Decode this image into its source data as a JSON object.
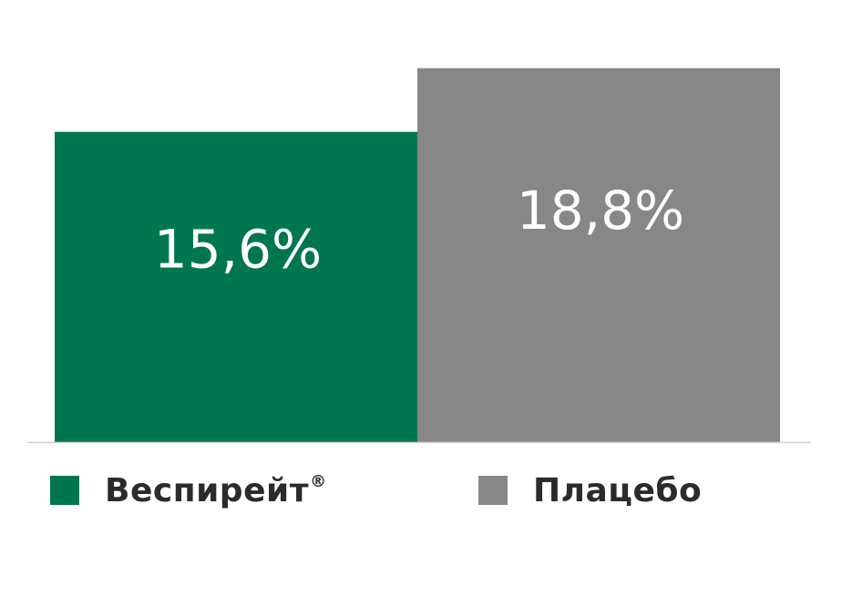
{
  "chart_data": {
    "type": "bar",
    "categories": [
      "Веспирейт®",
      "Плацебо"
    ],
    "values": [
      15.6,
      18.8
    ],
    "value_labels": [
      "15,6%",
      "18,8%"
    ],
    "unit": "%",
    "colors": [
      "#007650",
      "#878787"
    ],
    "ylim": [
      0,
      22
    ],
    "grid": false,
    "legend_position": "bottom"
  },
  "legend": [
    {
      "label": "Веспирейт",
      "sup": "®",
      "color": "#007650"
    },
    {
      "label": "Плацебо",
      "sup": "",
      "color": "#878787"
    }
  ],
  "baseline_color": "#cfcfcf"
}
